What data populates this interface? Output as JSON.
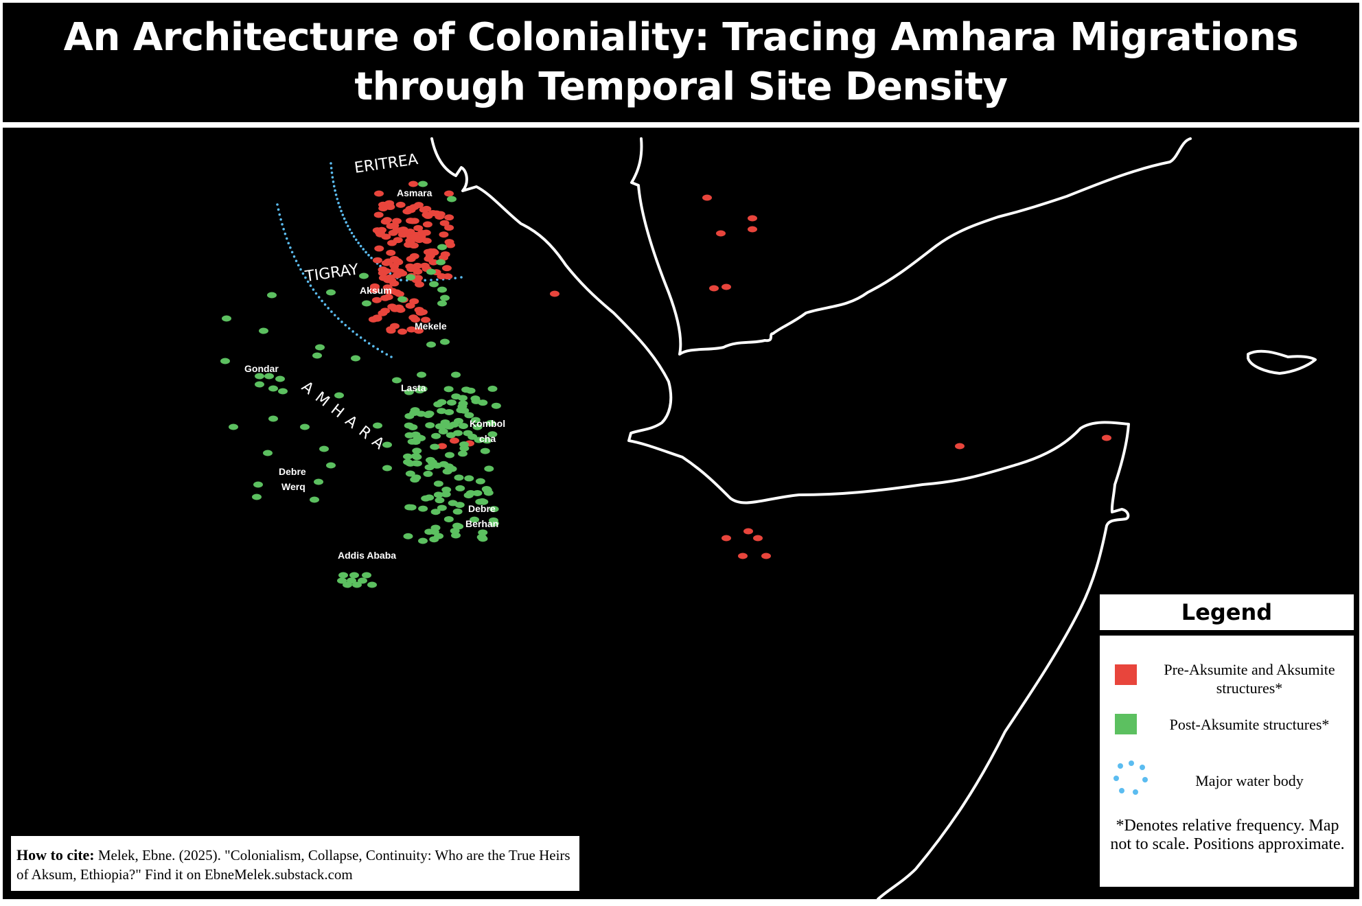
{
  "title": "An Architecture of Coloniality: Tracing Amhara Migrations through Temporal Site Density",
  "colors": {
    "pre_aksumite": "#e8453c",
    "post_aksumite": "#5cc060",
    "water": "#5bbcf0",
    "coastline": "#ffffff",
    "background": "#000000"
  },
  "map": {
    "region_labels": [
      "ERITREA",
      "TIGRAY",
      "AMHARA"
    ],
    "city_labels": [
      "Asmara",
      "Aksum",
      "Mekele",
      "Gondar",
      "Lasta",
      "Kombol",
      "cha",
      "Debre",
      "Werq",
      "Debre",
      "Berhan",
      "Addis Ababa"
    ]
  },
  "legend": {
    "title": "Legend",
    "items": [
      {
        "label": "Pre-Aksumite and Aksumite structures*",
        "icon": "red-square"
      },
      {
        "label": "Post-Aksumite structures*",
        "icon": "green-square"
      },
      {
        "label": "Major water body",
        "icon": "blue-dotted-circle"
      }
    ],
    "note": "*Denotes relative frequency. Map not to scale. Positions approximate."
  },
  "citation": {
    "label": "How to cite:",
    "text": "Melek, Ebne. (2025). \"Colonialism, Collapse, Continuity: Who are the True Heirs of Aksum, Ethiopia?\" Find it on EbneMelek.substack.com"
  }
}
